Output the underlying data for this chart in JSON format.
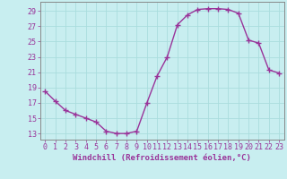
{
  "x": [
    0,
    1,
    2,
    3,
    4,
    5,
    6,
    7,
    8,
    9,
    10,
    11,
    12,
    13,
    14,
    15,
    16,
    17,
    18,
    19,
    20,
    21,
    22,
    23
  ],
  "y": [
    18.5,
    17.2,
    16.0,
    15.5,
    15.0,
    14.5,
    13.3,
    13.0,
    13.0,
    13.3,
    17.0,
    20.5,
    23.0,
    27.2,
    28.5,
    29.2,
    29.3,
    29.3,
    29.2,
    28.7,
    25.2,
    24.8,
    21.3,
    20.9
  ],
  "line_color": "#993399",
  "marker": "+",
  "markersize": 4,
  "linewidth": 1.0,
  "bg_color": "#c8eef0",
  "grid_color": "#aadddd",
  "xlabel": "Windchill (Refroidissement éolien,°C)",
  "xlabel_fontsize": 6.5,
  "ylabel_ticks": [
    13,
    15,
    17,
    19,
    21,
    23,
    25,
    27,
    29
  ],
  "xlim": [
    -0.5,
    23.5
  ],
  "ylim": [
    12.2,
    30.2
  ],
  "tick_fontsize": 6.0,
  "axis_color": "#993399",
  "spine_color": "#888888"
}
